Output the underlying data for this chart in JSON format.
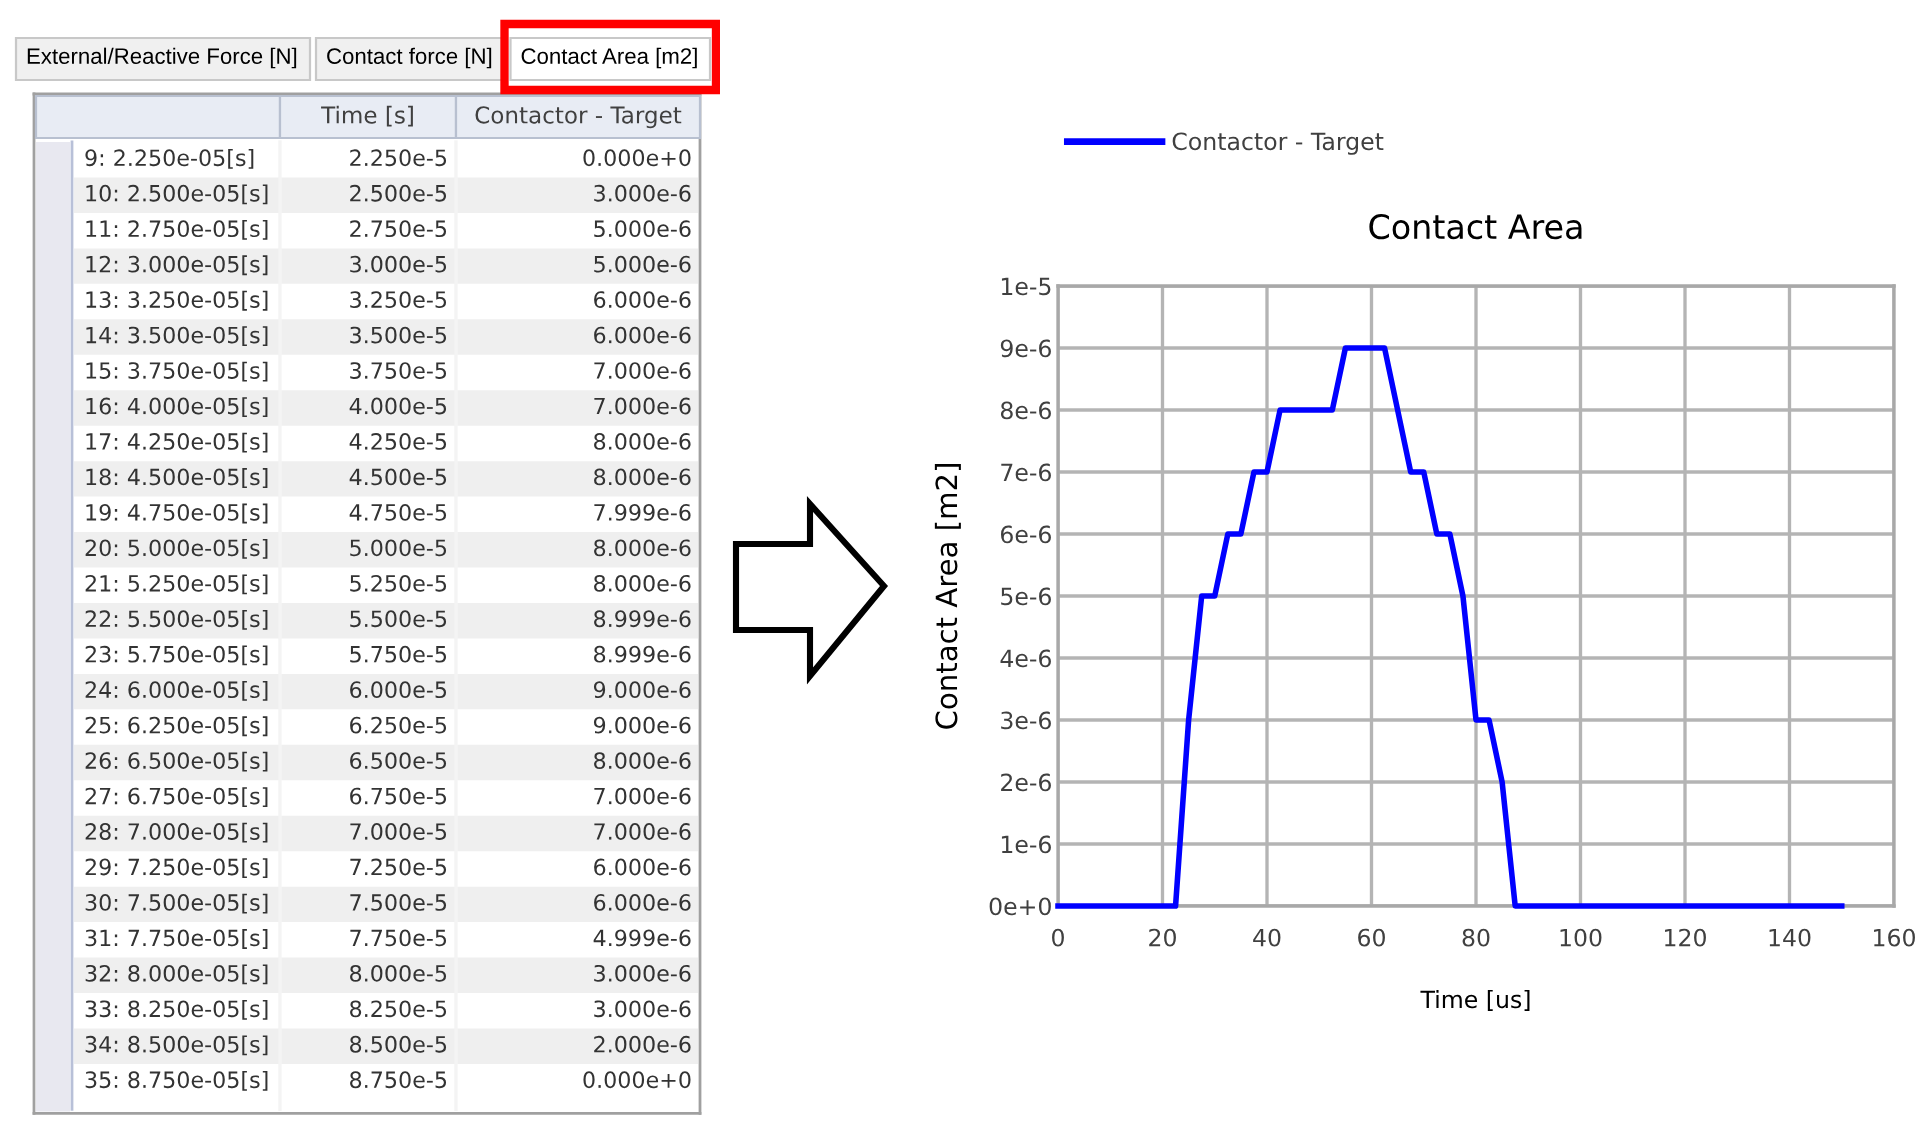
{
  "chart_data": [
    {
      "type": "other",
      "annotations": [
        "External/Reactive Force [N]",
        "Contact force [N]",
        "Contact Area [m2]"
      ],
      "categories": [
        "9: 2.250e-05[s]",
        "10: 2.500e-05[s]",
        "11: 2.750e-05[s]",
        "12: 3.000e-05[s]",
        "13: 3.250e-05[s]",
        "14: 3.500e-05[s]",
        "15: 3.750e-05[s]",
        "16: 4.000e-05[s]",
        "17: 4.250e-05[s]",
        "18: 4.500e-05[s]",
        "19: 4.750e-05[s]",
        "20: 5.000e-05[s]",
        "21: 5.250e-05[s]",
        "22: 5.500e-05[s]",
        "23: 5.750e-05[s]",
        "24: 6.000e-05[s]",
        "25: 6.250e-05[s]",
        "26: 6.500e-05[s]",
        "27: 6.750e-05[s]",
        "28: 7.000e-05[s]",
        "29: 7.250e-05[s]",
        "30: 7.500e-05[s]",
        "31: 7.750e-05[s]",
        "32: 8.000e-05[s]",
        "33: 8.250e-05[s]",
        "34: 8.500e-05[s]",
        "35: 8.750e-05[s]"
      ],
      "series": [
        {
          "name": "Time [s]",
          "color": "#333333",
          "values": [
            2.25e-05,
            2.5e-05,
            2.75e-05,
            3e-05,
            3.25e-05,
            3.5e-05,
            3.75e-05,
            4e-05,
            4.25e-05,
            4.5e-05,
            4.75e-05,
            5e-05,
            5.25e-05,
            5.5e-05,
            5.75e-05,
            6e-05,
            6.25e-05,
            6.5e-05,
            6.75e-05,
            7e-05,
            7.25e-05,
            7.5e-05,
            7.75e-05,
            8e-05,
            8.25e-05,
            8.5e-05,
            8.75e-05
          ],
          "value_labels": [
            "2.250e-5",
            "2.500e-5",
            "2.750e-5",
            "3.000e-5",
            "3.250e-5",
            "3.500e-5",
            "3.750e-5",
            "4.000e-5",
            "4.250e-5",
            "4.500e-5",
            "4.750e-5",
            "5.000e-5",
            "5.250e-5",
            "5.500e-5",
            "5.750e-5",
            "6.000e-5",
            "6.250e-5",
            "6.500e-5",
            "6.750e-5",
            "7.000e-5",
            "7.250e-5",
            "7.500e-5",
            "7.750e-5",
            "8.000e-5",
            "8.250e-5",
            "8.500e-5",
            "8.750e-5"
          ]
        },
        {
          "name": "Contactor - Target",
          "color": "#333333",
          "values": [
            0,
            3e-06,
            5e-06,
            5e-06,
            6e-06,
            6e-06,
            7e-06,
            7e-06,
            8e-06,
            8e-06,
            7.999e-06,
            8e-06,
            8e-06,
            8.999e-06,
            8.999e-06,
            9e-06,
            9e-06,
            8e-06,
            7e-06,
            7e-06,
            6e-06,
            6e-06,
            4.999e-06,
            3e-06,
            3e-06,
            2e-06,
            0
          ],
          "value_labels": [
            "0.000e+0",
            "3.000e-6",
            "5.000e-6",
            "5.000e-6",
            "6.000e-6",
            "6.000e-6",
            "7.000e-6",
            "7.000e-6",
            "8.000e-6",
            "8.000e-6",
            "7.999e-6",
            "8.000e-6",
            "8.000e-6",
            "8.999e-6",
            "8.999e-6",
            "9.000e-6",
            "9.000e-6",
            "8.000e-6",
            "7.000e-6",
            "7.000e-6",
            "6.000e-6",
            "6.000e-6",
            "4.999e-6",
            "3.000e-6",
            "3.000e-6",
            "2.000e-6",
            "0.000e+0"
          ]
        }
      ]
    },
    {
      "type": "line",
      "title": "Contact Area",
      "xlabel": "Time [us]",
      "ylabel": "Contact Area [m2]",
      "series": [
        {
          "name": "Contactor - Target",
          "color": "#0000ff",
          "x": [
            0,
            22.5,
            25,
            27.5,
            30,
            32.5,
            35,
            37.5,
            40,
            42.5,
            45,
            47.5,
            50,
            52.5,
            55,
            57.5,
            60,
            62.5,
            65,
            67.5,
            70,
            72.5,
            75,
            77.5,
            80,
            82.5,
            85,
            87.5,
            150
          ],
          "values": [
            0,
            0,
            3e-06,
            5e-06,
            5e-06,
            6e-06,
            6e-06,
            7e-06,
            7e-06,
            8e-06,
            8e-06,
            7.999e-06,
            8e-06,
            8e-06,
            8.999e-06,
            8.999e-06,
            9e-06,
            9e-06,
            8e-06,
            7e-06,
            7e-06,
            6e-06,
            6e-06,
            4.999e-06,
            3e-06,
            3e-06,
            2e-06,
            0,
            0
          ]
        }
      ],
      "xlim": [
        0,
        160
      ],
      "xticks": [
        0,
        20,
        40,
        60,
        80,
        100,
        120,
        140,
        160
      ],
      "ylim": [
        0,
        1e-05
      ],
      "yticks": [
        {
          "value": 0,
          "label": "0e+0"
        },
        {
          "value": 1e-06,
          "label": "1e-6"
        },
        {
          "value": 2e-06,
          "label": "2e-6"
        },
        {
          "value": 3e-06,
          "label": "3e-6"
        },
        {
          "value": 4e-06,
          "label": "4e-6"
        },
        {
          "value": 5e-06,
          "label": "5e-6"
        },
        {
          "value": 6e-06,
          "label": "6e-6"
        },
        {
          "value": 7e-06,
          "label": "7e-6"
        },
        {
          "value": 8e-06,
          "label": "8e-6"
        },
        {
          "value": 9e-06,
          "label": "9e-6"
        },
        {
          "value": 1e-05,
          "label": "1e-5"
        }
      ],
      "grid": true,
      "legend": "top left",
      "marker": "none",
      "line_style": "solid"
    }
  ]
}
